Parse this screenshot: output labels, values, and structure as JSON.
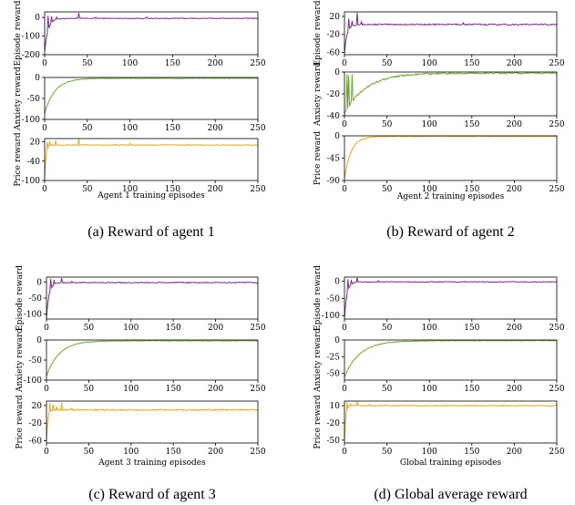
{
  "figure": {
    "colors": {
      "episode": "#7b2a8b",
      "anxiety": "#6aa62c",
      "price": "#e6a817"
    },
    "panels": [
      {
        "caption": "(a) Reward of agent 1",
        "xlabel": "Agent 1 training episodes",
        "xlim": [
          0,
          250
        ],
        "xticks": [
          0,
          50,
          100,
          150,
          200,
          250
        ],
        "chart_data": [
          {
            "type": "line",
            "ylabel": "Episode reward",
            "ylim": [
              -200,
              30
            ],
            "yticks": [
              0,
              -100,
              -200
            ],
            "series": [
              {
                "name": "Episode reward",
                "color": "#7b2a8b",
                "init": -180,
                "final": -5,
                "tau": 4,
                "noise": 4,
                "spikes": [
                  [
                    4,
                    10
                  ],
                  [
                    8,
                    5
                  ],
                  [
                    14,
                    2
                  ],
                  [
                    40,
                    25
                  ],
                  [
                    60,
                    1
                  ],
                  [
                    120,
                    2
                  ]
                ]
              }
            ]
          },
          {
            "type": "line",
            "ylabel": "Anxiety reward",
            "ylim": [
              -100,
              0
            ],
            "yticks": [
              0,
              -50,
              -100
            ],
            "series": [
              {
                "name": "Anxiety reward",
                "color": "#6aa62c",
                "init": -85,
                "final": -2,
                "tau": 12,
                "noise": 1.5,
                "spikes": []
              }
            ]
          },
          {
            "type": "line",
            "ylabel": "Price reward",
            "ylim": [
              -100,
              30
            ],
            "yticks": [
              20,
              -40,
              -100
            ],
            "series": [
              {
                "name": "Price reward",
                "color": "#e6a817",
                "init": -95,
                "final": 10,
                "tau": 1.5,
                "noise": 2.5,
                "spikes": [
                  [
                    3,
                    20
                  ],
                  [
                    6,
                    22
                  ],
                  [
                    13,
                    24
                  ],
                  [
                    40,
                    28
                  ],
                  [
                    100,
                    15
                  ]
                ]
              }
            ]
          }
        ]
      },
      {
        "caption": "(b) Reward of agent 2",
        "xlabel": "Agent 2 training episodes",
        "xlim": [
          0,
          250
        ],
        "xticks": [
          0,
          50,
          100,
          150,
          200,
          250
        ],
        "chart_data": [
          {
            "type": "line",
            "ylabel": "Episode reward",
            "ylim": [
              -65,
              30
            ],
            "yticks": [
              20,
              -20,
              -60
            ],
            "series": [
              {
                "name": "Episode reward",
                "color": "#7b2a8b",
                "init": -60,
                "final": 2,
                "tau": 3,
                "noise": 3,
                "spikes": [
                  [
                    5,
                    15
                  ],
                  [
                    9,
                    10
                  ],
                  [
                    15,
                    28
                  ],
                  [
                    20,
                    8
                  ],
                  [
                    140,
                    6
                  ]
                ]
              }
            ]
          },
          {
            "type": "line",
            "ylabel": "Anxiety reward",
            "ylim": [
              -40,
              0
            ],
            "yticks": [
              0,
              -20,
              -40
            ],
            "series": [
              {
                "name": "Anxiety reward",
                "color": "#6aa62c",
                "init": -38,
                "final": -1,
                "tau": 25,
                "noise": 1.5,
                "spikes": [
                  [
                    3,
                    -2
                  ],
                  [
                    5,
                    -3
                  ],
                  [
                    9,
                    -2
                  ]
                ]
              }
            ]
          },
          {
            "type": "line",
            "ylabel": "Price reward",
            "ylim": [
              -90,
              0
            ],
            "yticks": [
              0,
              -45,
              -90
            ],
            "series": [
              {
                "name": "Price reward",
                "color": "#e6a817",
                "init": -85,
                "final": -1,
                "tau": 8,
                "noise": 1.5,
                "spikes": []
              }
            ]
          }
        ]
      },
      {
        "caption": "(c) Reward of agent 3",
        "xlabel": "Agent 3 training episodes",
        "xlim": [
          0,
          250
        ],
        "xticks": [
          0,
          50,
          100,
          150,
          200,
          250
        ],
        "chart_data": [
          {
            "type": "line",
            "ylabel": "Episode reward",
            "ylim": [
              -115,
              15
            ],
            "yticks": [
              0,
              -50,
              -100
            ],
            "series": [
              {
                "name": "Episode reward",
                "color": "#7b2a8b",
                "init": -110,
                "final": -2,
                "tau": 3,
                "noise": 3,
                "spikes": [
                  [
                    5,
                    10
                  ],
                  [
                    9,
                    6
                  ],
                  [
                    18,
                    12
                  ],
                  [
                    30,
                    2
                  ]
                ]
              }
            ]
          },
          {
            "type": "line",
            "ylabel": "Anxiety reward",
            "ylim": [
              -100,
              0
            ],
            "yticks": [
              0,
              -50,
              -100
            ],
            "series": [
              {
                "name": "Anxiety reward",
                "color": "#6aa62c",
                "init": -90,
                "final": -2,
                "tau": 15,
                "noise": 1.5,
                "spikes": []
              }
            ]
          },
          {
            "type": "line",
            "ylabel": "Price reward",
            "ylim": [
              -65,
              30
            ],
            "yticks": [
              20,
              -20,
              -60
            ],
            "series": [
              {
                "name": "Price reward",
                "color": "#e6a817",
                "init": -60,
                "final": 10,
                "tau": 1.5,
                "noise": 3,
                "spikes": [
                  [
                    4,
                    25
                  ],
                  [
                    8,
                    22
                  ],
                  [
                    12,
                    18
                  ],
                  [
                    18,
                    26
                  ],
                  [
                    30,
                    14
                  ]
                ]
              }
            ]
          }
        ]
      },
      {
        "caption": "(d) Global average reward",
        "xlabel": "Global training episodes",
        "xlim": [
          0,
          250
        ],
        "xticks": [
          0,
          50,
          100,
          150,
          200,
          250
        ],
        "chart_data": [
          {
            "type": "line",
            "ylabel": "Episode reward",
            "ylim": [
              -110,
              12
            ],
            "yticks": [
              0,
              -50,
              -100
            ],
            "series": [
              {
                "name": "Episode reward",
                "color": "#7b2a8b",
                "init": -105,
                "final": -2,
                "tau": 3,
                "noise": 2.5,
                "spikes": [
                  [
                    4,
                    6
                  ],
                  [
                    8,
                    4
                  ],
                  [
                    15,
                    10
                  ],
                  [
                    40,
                    2
                  ]
                ]
              }
            ]
          },
          {
            "type": "line",
            "ylabel": "Anxiety reward",
            "ylim": [
              -60,
              0
            ],
            "yticks": [
              0,
              -25,
              -50
            ],
            "series": [
              {
                "name": "Anxiety reward",
                "color": "#6aa62c",
                "init": -55,
                "final": -1,
                "tau": 18,
                "noise": 1.2,
                "spikes": []
              }
            ]
          },
          {
            "type": "line",
            "ylabel": "Price reward",
            "ylim": [
              -55,
              18
            ],
            "yticks": [
              10,
              -20,
              -50
            ],
            "series": [
              {
                "name": "Price reward",
                "color": "#e6a817",
                "init": -50,
                "final": 10,
                "tau": 1.5,
                "noise": 1.8,
                "spikes": [
                  [
                    3,
                    16
                  ],
                  [
                    7,
                    13
                  ],
                  [
                    15,
                    16
                  ],
                  [
                    30,
                    12
                  ]
                ]
              }
            ]
          }
        ]
      }
    ]
  }
}
